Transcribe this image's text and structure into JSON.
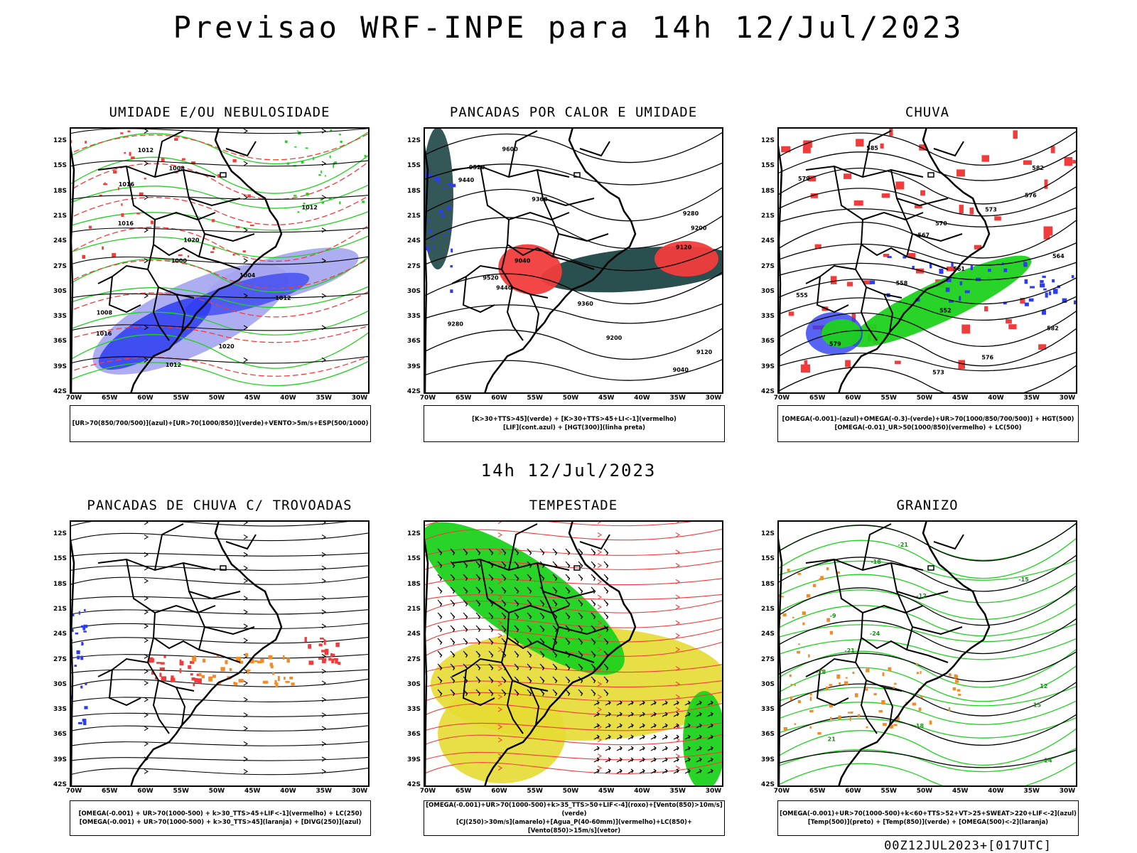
{
  "main_title": "Previsao WRF-INPE  para 14h 12/Jul/2023",
  "mid_title": "14h 12/Jul/2023",
  "footer": "00Z12JUL2023+[017UTC]",
  "lat_labels": [
    "12S",
    "15S",
    "18S",
    "21S",
    "24S",
    "27S",
    "30S",
    "33S",
    "36S",
    "39S",
    "42S"
  ],
  "lon_labels": [
    "70W",
    "65W",
    "60W",
    "55W",
    "50W",
    "45W",
    "40W",
    "35W",
    "30W"
  ],
  "colors": {
    "red": "#f23c3c",
    "green": "#1ed21e",
    "blue": "#2d3cf0",
    "lightblue": "#a4a4f0",
    "darkteal": "#1e4646",
    "orange": "#f08c28",
    "yellow": "#e6dc32",
    "purple": "#7a4ad8"
  },
  "panels": [
    {
      "title": "UMIDADE E/OU NEBULOSIDADE",
      "legend": [
        "[UR>70(850/700/500)](azul)+[UR>70(1000/850)](verde)+VENTO>5m/s+ESP(500/1000)"
      ],
      "contour_labels": [
        "1012",
        "1008",
        "1016",
        "1012",
        "1016",
        "1020",
        "1000",
        "1004",
        "1012",
        "1008",
        "1016",
        "1020",
        "1012"
      ]
    },
    {
      "title": "PANCADAS POR CALOR E UMIDADE",
      "legend": [
        "[K>30+TTS>45](verde) + [K>30+TTS>45+LI<-1](vermelho)",
        "[LIF](cont.azul) + [HGT(300)](linha preta)"
      ],
      "contour_labels": [
        "9600",
        "9520",
        "9440",
        "9360",
        "9280",
        "9200",
        "9120",
        "9040",
        "9520",
        "9440",
        "9360",
        "9280",
        "9200",
        "9120",
        "9040"
      ]
    },
    {
      "title": "CHUVA",
      "legend": [
        "[OMEGA(-0.001)-(azul)+OMEGA(-0.3)-(verde)+UR>70(1000/850/700/500)] + HGT(500)",
        "[OMEGA(-0.01)_UR>50(1000/850)(vermelho) + LC(500)"
      ],
      "contour_labels": [
        "585",
        "582",
        "579",
        "576",
        "573",
        "570",
        "567",
        "564",
        "561",
        "558",
        "555",
        "552",
        "582",
        "579",
        "576",
        "573"
      ]
    },
    {
      "title": "PANCADAS DE CHUVA C/ TROVOADAS",
      "legend": [
        "[OMEGA(-0.001) + UR>70(1000-500) + k>30_TTS>45+LIF<-1](vermelho) + LC(250)",
        "[OMEGA(-0.001) + UR>70(1000-500) + k>30_TTS>45](laranja) + [DIVG(250)](azul)"
      ]
    },
    {
      "title": "TEMPESTADE",
      "legend": [
        "[OMEGA(-0.001)+UR>70(1000-500)+k>35_TTS>50+LIF<-4](roxo)+[Vento(850)>10m/s](verde)",
        "[CJ(250)>30m/s](amarelo)+[Agua_P(40-60mm)](vermelho)+LC(850)+[Vento(850)>15m/s](vetor)"
      ]
    },
    {
      "title": "GRANIZO",
      "legend": [
        "[OMEGA(-0.001)+UR>70(1000-500)+k<60+TTS>52+VT>25+SWEAT>220+LIF<-2](azul)",
        "[Temp(500)](preto) + [Temp(850)](verde) + [OMEGA(500)<-2](laranja)"
      ],
      "contour_labels": [
        "-21",
        "-18",
        "-15",
        "-12",
        "-9",
        "-24",
        "-21",
        "-18",
        "12",
        "15",
        "18",
        "21",
        "24"
      ]
    }
  ]
}
